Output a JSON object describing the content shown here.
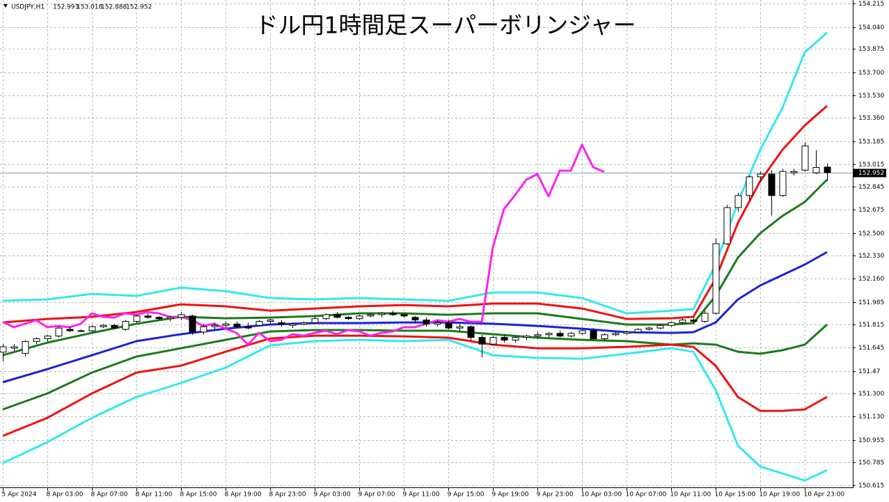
{
  "chart_data": {
    "type": "candlestick",
    "title": "ドル円1時間足スーパーボリンジャー",
    "symbol": "USDJPY,H1",
    "ylim": [
      150.615,
      154.215
    ],
    "yticks": [
      154.215,
      {
        "value": 154.04,
        "label": "154.040"
      },
      153.875,
      {
        "value": 153.7,
        "label": "153.700"
      },
      {
        "value": 153.53,
        "label": "153.530"
      },
      {
        "value": 153.36,
        "label": "153.360"
      },
      153.185,
      153.015,
      152.845,
      152.675,
      {
        "value": 152.5,
        "label": "152.500"
      },
      {
        "value": 152.33,
        "label": "152.330"
      },
      {
        "value": 152.16,
        "label": "152.160"
      },
      151.985,
      151.815,
      151.645,
      151.47,
      {
        "value": 151.3,
        "label": "151.300"
      },
      {
        "value": 151.13,
        "label": "151.130"
      },
      150.955,
      150.785,
      150.615
    ],
    "grid": true,
    "categories": [
      "5 Apr 2024",
      null,
      null,
      null,
      "8 Apr 03:00",
      null,
      null,
      null,
      "8 Apr 07:00",
      null,
      null,
      null,
      "8 Apr 11:00",
      null,
      null,
      null,
      "8 Apr 15:00",
      null,
      null,
      null,
      "8 Apr 19:00",
      null,
      null,
      null,
      "8 Apr 23:00",
      null,
      null,
      null,
      "9 Apr 03:00",
      null,
      null,
      null,
      "9 Apr 07:00",
      null,
      null,
      null,
      "9 Apr 11:00",
      null,
      null,
      null,
      "9 Apr 15:00",
      null,
      null,
      null,
      "9 Apr 19:00",
      null,
      null,
      null,
      "9 Apr 23:00",
      null,
      null,
      null,
      "10 Apr 03:00",
      null,
      null,
      null,
      "10 Apr 07:00",
      null,
      null,
      null,
      "10 Apr 11:00",
      null,
      null,
      null,
      "10 Apr 15:00",
      null,
      null,
      null,
      "10 Apr 19:00",
      null,
      null,
      null,
      "10 Apr 23:00",
      null,
      null
    ],
    "open": [
      151.61,
      151.64,
      151.6,
      151.69,
      151.71,
      151.73,
      151.78,
      151.77,
      151.77,
      151.8,
      151.81,
      151.78,
      151.84,
      151.88,
      151.87,
      151.86,
      151.87,
      151.88,
      151.76,
      151.8,
      151.81,
      151.82,
      151.8,
      151.81,
      151.84,
      151.83,
      151.81,
      151.82,
      151.83,
      151.86,
      151.89,
      151.87,
      151.86,
      151.88,
      151.89,
      151.9,
      151.89,
      151.87,
      151.85,
      151.82,
      151.83,
      151.79,
      151.8,
      151.72,
      151.67,
      151.72,
      151.7,
      151.72,
      151.73,
      151.74,
      151.75,
      151.73,
      151.75,
      151.77,
      151.71,
      151.74,
      151.75,
      151.76,
      151.78,
      151.79,
      151.81,
      151.83,
      151.85,
      151.84,
      151.9,
      152.42,
      152.69,
      152.78,
      152.92,
      152.94,
      152.78,
      152.95,
      152.97,
      152.95,
      152.993
    ],
    "high": [
      151.67,
      151.67,
      151.7,
      151.72,
      151.74,
      151.8,
      151.8,
      151.78,
      151.81,
      151.82,
      151.82,
      151.85,
      151.89,
      151.9,
      151.88,
      151.88,
      151.91,
      151.89,
      151.82,
      151.83,
      151.84,
      151.84,
      151.83,
      151.85,
      151.86,
      151.85,
      151.83,
      151.84,
      151.88,
      151.9,
      151.91,
      151.88,
      151.89,
      151.9,
      151.91,
      151.92,
      151.9,
      151.88,
      151.87,
      151.85,
      151.85,
      151.82,
      151.81,
      151.74,
      151.73,
      151.74,
      151.73,
      151.74,
      151.76,
      151.76,
      151.77,
      151.76,
      151.78,
      151.79,
      151.75,
      151.76,
      151.77,
      151.79,
      151.8,
      151.82,
      151.84,
      151.86,
      151.87,
      151.92,
      152.46,
      152.71,
      152.8,
      152.93,
      152.96,
      152.97,
      152.98,
      152.98,
      153.18,
      153.12,
      153.018
    ],
    "low": [
      151.54,
      151.62,
      151.58,
      151.67,
      151.69,
      151.72,
      151.76,
      151.76,
      151.76,
      151.79,
      151.78,
      151.77,
      151.83,
      151.86,
      151.85,
      151.84,
      151.85,
      151.74,
      151.74,
      151.78,
      151.79,
      151.79,
      151.78,
      151.8,
      151.82,
      151.8,
      151.79,
      151.81,
      151.82,
      151.85,
      151.86,
      151.85,
      151.85,
      151.87,
      151.87,
      151.88,
      151.87,
      151.83,
      151.8,
      151.8,
      151.78,
      151.77,
      151.7,
      151.57,
      151.66,
      151.68,
      151.68,
      151.7,
      151.71,
      151.72,
      151.72,
      151.72,
      151.74,
      151.7,
      151.7,
      151.73,
      151.74,
      151.75,
      151.77,
      151.78,
      151.8,
      151.82,
      151.82,
      151.83,
      151.89,
      152.41,
      152.66,
      152.75,
      152.88,
      152.63,
      152.77,
      152.93,
      152.96,
      152.94,
      152.888
    ],
    "close": [
      151.65,
      151.65,
      151.69,
      151.71,
      151.73,
      151.79,
      151.77,
      151.77,
      151.8,
      151.81,
      151.79,
      151.84,
      151.88,
      151.87,
      151.86,
      151.87,
      151.89,
      151.76,
      151.8,
      151.81,
      151.82,
      151.8,
      151.79,
      151.84,
      151.85,
      151.82,
      151.82,
      151.83,
      151.86,
      151.89,
      151.87,
      151.86,
      151.88,
      151.89,
      151.9,
      151.89,
      151.88,
      151.85,
      151.82,
      151.83,
      151.79,
      151.8,
      151.72,
      151.67,
      151.72,
      151.7,
      151.72,
      151.73,
      151.74,
      151.75,
      151.73,
      151.75,
      151.77,
      151.71,
      151.74,
      151.75,
      151.76,
      151.78,
      151.79,
      151.81,
      151.83,
      151.85,
      151.84,
      151.9,
      152.42,
      152.69,
      152.78,
      152.92,
      152.94,
      152.78,
      152.96,
      152.96,
      153.15,
      152.99,
      152.952
    ],
    "price_line_color": "#7f9fb4",
    "series": [
      {
        "color": "#33e8f0",
        "x": [
          0,
          4,
          8,
          12,
          16,
          20,
          24,
          28,
          32,
          36,
          40,
          44,
          48,
          52,
          56,
          60,
          62,
          64,
          66,
          68,
          70,
          72,
          74
        ],
        "values": [
          151.993,
          152.004,
          152.045,
          152.03,
          152.092,
          152.066,
          152.014,
          152.004,
          152.014,
          152.004,
          151.993,
          152.056,
          152.056,
          152.014,
          151.9,
          151.92,
          151.931,
          152.264,
          152.732,
          153.122,
          153.435,
          153.851,
          153.997
        ]
      },
      {
        "color": "#ee1111",
        "x": [
          0,
          4,
          8,
          12,
          16,
          20,
          24,
          28,
          32,
          36,
          40,
          44,
          48,
          52,
          56,
          60,
          62,
          64,
          66,
          68,
          70,
          72,
          74
        ],
        "values": [
          151.832,
          151.858,
          151.874,
          151.91,
          151.967,
          151.952,
          151.92,
          151.936,
          151.952,
          151.962,
          151.952,
          151.973,
          151.973,
          151.936,
          151.858,
          151.863,
          151.874,
          152.16,
          152.576,
          152.888,
          153.122,
          153.304,
          153.45
        ]
      },
      {
        "color": "#1a7a1a",
        "x": [
          0,
          4,
          8,
          12,
          16,
          20,
          24,
          28,
          32,
          36,
          40,
          44,
          48,
          52,
          56,
          60,
          62,
          64,
          66,
          68,
          70,
          72,
          74
        ],
        "values": [
          151.587,
          151.681,
          151.754,
          151.822,
          151.874,
          151.863,
          151.868,
          151.879,
          151.9,
          151.9,
          151.889,
          151.9,
          151.9,
          151.858,
          151.816,
          151.816,
          151.827,
          152.03,
          152.316,
          152.498,
          152.628,
          152.732,
          152.899
        ]
      },
      {
        "color": "#1a22d6",
        "x": [
          0,
          4,
          8,
          12,
          16,
          20,
          24,
          28,
          32,
          36,
          40,
          44,
          48,
          52,
          56,
          60,
          62,
          64,
          66,
          68,
          70,
          72,
          74
        ],
        "values": [
          151.385,
          151.483,
          151.587,
          151.692,
          151.744,
          151.785,
          151.816,
          151.827,
          151.827,
          151.832,
          151.832,
          151.822,
          151.806,
          151.785,
          151.759,
          151.754,
          151.759,
          151.832,
          152.004,
          152.108,
          152.186,
          152.264,
          152.358
        ]
      },
      {
        "color": "#1a7a1a",
        "x": [
          0,
          4,
          8,
          12,
          16,
          20,
          24,
          28,
          32,
          36,
          40,
          44,
          48,
          52,
          56,
          60,
          62,
          64,
          66,
          68,
          70,
          72,
          74
        ],
        "values": [
          151.182,
          151.301,
          151.457,
          151.577,
          151.639,
          151.702,
          151.764,
          151.775,
          151.775,
          151.77,
          151.77,
          151.744,
          151.718,
          151.702,
          151.692,
          151.666,
          151.676,
          151.666,
          151.613,
          151.598,
          151.624,
          151.666,
          151.816
        ]
      },
      {
        "color": "#ee1111",
        "x": [
          0,
          4,
          8,
          12,
          16,
          20,
          24,
          28,
          32,
          36,
          40,
          44,
          48,
          52,
          56,
          60,
          62,
          64,
          66,
          68,
          70,
          72,
          74
        ],
        "values": [
          150.984,
          151.119,
          151.301,
          151.457,
          151.509,
          151.613,
          151.712,
          151.733,
          151.733,
          151.728,
          151.718,
          151.666,
          151.639,
          151.639,
          151.65,
          151.666,
          151.65,
          151.509,
          151.275,
          151.171,
          151.171,
          151.182,
          151.275
        ]
      },
      {
        "color": "#33e8f0",
        "x": [
          0,
          4,
          8,
          12,
          16,
          20,
          24,
          28,
          32,
          36,
          40,
          44,
          48,
          52,
          56,
          60,
          62,
          64,
          66,
          68,
          70,
          72,
          74
        ],
        "values": [
          150.781,
          150.937,
          151.119,
          151.275,
          151.379,
          151.494,
          151.66,
          151.692,
          151.702,
          151.692,
          151.702,
          151.587,
          151.567,
          151.561,
          151.598,
          151.639,
          151.613,
          151.327,
          150.911,
          150.755,
          150.703,
          150.651,
          150.729
        ]
      },
      {
        "color": "#ff22ee",
        "values": [
          151.837,
          151.796,
          151.822,
          151.848,
          151.796,
          151.806,
          151.796,
          151.822,
          151.9,
          151.874,
          151.868,
          151.9,
          151.889,
          151.91,
          151.9,
          151.874,
          151.874,
          151.848,
          151.806,
          151.822,
          151.785,
          151.754,
          151.666,
          151.754,
          151.692,
          151.702,
          151.744,
          151.733,
          151.754,
          151.77,
          151.744,
          151.775,
          151.764,
          151.733,
          151.754,
          151.764,
          151.796,
          151.796,
          151.822,
          151.848,
          151.837,
          151.858,
          151.837,
          151.837,
          152.394,
          152.68,
          152.784,
          152.899,
          152.94,
          152.774,
          152.966,
          152.966,
          153.159,
          152.992,
          152.956,
          null,
          null,
          null,
          null,
          null,
          null,
          null,
          null,
          null,
          null,
          null,
          null,
          null,
          null,
          null,
          null,
          null,
          null,
          null,
          null
        ]
      }
    ]
  }
}
